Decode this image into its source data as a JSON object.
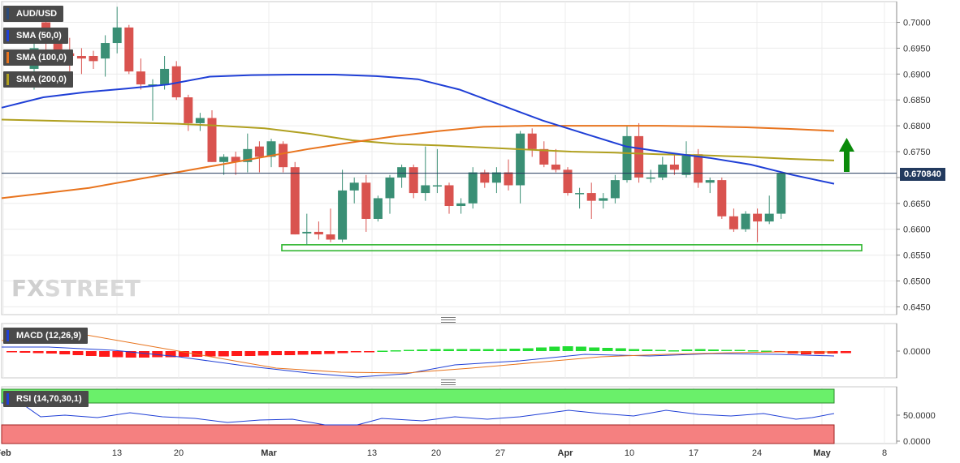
{
  "chart_data": [
    {
      "type": "candlestick",
      "legend": [
        "AUD/USD",
        "SMA (50,0)",
        "SMA (100,0)",
        "SMA (200,0)"
      ],
      "colors": {
        "up": "#3a8f75",
        "down": "#d9534f",
        "sma50": "#1f3fd6",
        "sma100": "#e8741e",
        "sma200": "#b0a020",
        "support_box": "#2fb52f",
        "arrow": "#0a8a0a"
      },
      "y_ticks": [
        "0.7000",
        "0.6950",
        "0.6900",
        "0.6850",
        "0.6800",
        "0.6750",
        "0.6700",
        "0.6650",
        "0.6600",
        "0.6550",
        "0.6500",
        "0.6450"
      ],
      "ylim": [
        0.6435,
        0.704
      ],
      "last_price": "0.670840",
      "x_ticks": [
        "Feb",
        "13",
        "20",
        "Mar",
        "13",
        "20",
        "27",
        "Apr",
        "10",
        "17",
        "24",
        "May",
        "8"
      ],
      "candles_note": "o,h,l,c per trading day",
      "candles": [
        [
          0.691,
          0.697,
          0.687,
          0.695
        ],
        [
          0.7,
          0.702,
          0.694,
          0.696
        ],
        [
          0.696,
          0.6985,
          0.692,
          0.694
        ],
        [
          0.694,
          0.697,
          0.69,
          0.6935
        ],
        [
          0.6935,
          0.695,
          0.69,
          0.693
        ],
        [
          0.6935,
          0.6945,
          0.691,
          0.6925
        ],
        [
          0.693,
          0.6975,
          0.6895,
          0.696
        ],
        [
          0.696,
          0.703,
          0.694,
          0.699
        ],
        [
          0.699,
          0.6995,
          0.69,
          0.6905
        ],
        [
          0.6905,
          0.693,
          0.687,
          0.688
        ],
        [
          0.688,
          0.689,
          0.681,
          0.688
        ],
        [
          0.688,
          0.6935,
          0.687,
          0.691
        ],
        [
          0.6915,
          0.6925,
          0.685,
          0.6855
        ],
        [
          0.6855,
          0.686,
          0.679,
          0.6805
        ],
        [
          0.6805,
          0.6825,
          0.679,
          0.6815
        ],
        [
          0.6815,
          0.683,
          0.673,
          0.673
        ],
        [
          0.673,
          0.6745,
          0.6705,
          0.674
        ],
        [
          0.674,
          0.675,
          0.6705,
          0.673
        ],
        [
          0.673,
          0.6785,
          0.671,
          0.6755
        ],
        [
          0.676,
          0.677,
          0.671,
          0.674
        ],
        [
          0.674,
          0.6775,
          0.672,
          0.677
        ],
        [
          0.6765,
          0.677,
          0.671,
          0.672
        ],
        [
          0.672,
          0.673,
          0.659,
          0.659
        ],
        [
          0.6592,
          0.663,
          0.657,
          0.6595
        ],
        [
          0.6595,
          0.6615,
          0.658,
          0.659
        ],
        [
          0.659,
          0.664,
          0.6575,
          0.658
        ],
        [
          0.658,
          0.6715,
          0.6575,
          0.6675
        ],
        [
          0.6675,
          0.67,
          0.665,
          0.669
        ],
        [
          0.669,
          0.6705,
          0.6595,
          0.662
        ],
        [
          0.662,
          0.6665,
          0.6615,
          0.666
        ],
        [
          0.666,
          0.6705,
          0.663,
          0.67
        ],
        [
          0.67,
          0.6725,
          0.668,
          0.672
        ],
        [
          0.672,
          0.6725,
          0.666,
          0.667
        ],
        [
          0.667,
          0.676,
          0.6655,
          0.6685
        ],
        [
          0.6685,
          0.6755,
          0.667,
          0.6685
        ],
        [
          0.6685,
          0.669,
          0.663,
          0.6645
        ],
        [
          0.6645,
          0.666,
          0.663,
          0.665
        ],
        [
          0.665,
          0.672,
          0.664,
          0.671
        ],
        [
          0.671,
          0.6715,
          0.668,
          0.669
        ],
        [
          0.669,
          0.672,
          0.667,
          0.671
        ],
        [
          0.671,
          0.6735,
          0.6675,
          0.6685
        ],
        [
          0.6685,
          0.679,
          0.665,
          0.6785
        ],
        [
          0.6785,
          0.6795,
          0.674,
          0.6755
        ],
        [
          0.6755,
          0.677,
          0.672,
          0.6725
        ],
        [
          0.6725,
          0.6755,
          0.671,
          0.6715
        ],
        [
          0.6715,
          0.672,
          0.6665,
          0.667
        ],
        [
          0.667,
          0.668,
          0.664,
          0.667
        ],
        [
          0.667,
          0.669,
          0.662,
          0.6655
        ],
        [
          0.6655,
          0.667,
          0.664,
          0.666
        ],
        [
          0.666,
          0.6705,
          0.665,
          0.6695
        ],
        [
          0.6695,
          0.68,
          0.669,
          0.678
        ],
        [
          0.678,
          0.6805,
          0.669,
          0.67
        ],
        [
          0.67,
          0.6715,
          0.669,
          0.67
        ],
        [
          0.67,
          0.674,
          0.6695,
          0.6725
        ],
        [
          0.6725,
          0.6745,
          0.6705,
          0.6715
        ],
        [
          0.6705,
          0.677,
          0.67,
          0.6745
        ],
        [
          0.6745,
          0.6755,
          0.668,
          0.669
        ],
        [
          0.669,
          0.67,
          0.667,
          0.6695
        ],
        [
          0.6695,
          0.67,
          0.662,
          0.6625
        ],
        [
          0.6625,
          0.664,
          0.6595,
          0.66
        ],
        [
          0.66,
          0.6635,
          0.6595,
          0.663
        ],
        [
          0.663,
          0.664,
          0.6575,
          0.6615
        ],
        [
          0.6615,
          0.6665,
          0.661,
          0.663
        ],
        [
          0.663,
          0.671,
          0.662,
          0.6708
        ]
      ],
      "sma50": [
        0.6835,
        0.6855,
        0.6865,
        0.6872,
        0.688,
        0.6895,
        0.6898,
        0.6899,
        0.6899,
        0.6896,
        0.689,
        0.687,
        0.684,
        0.681,
        0.6785,
        0.676,
        0.6748,
        0.6738,
        0.6725,
        0.6705,
        0.6688
      ],
      "sma100": [
        0.666,
        0.667,
        0.668,
        0.6695,
        0.671,
        0.6725,
        0.674,
        0.6755,
        0.6768,
        0.678,
        0.679,
        0.6798,
        0.68,
        0.68,
        0.68,
        0.68,
        0.6799,
        0.6797,
        0.6794,
        0.679
      ],
      "sma200": [
        0.6812,
        0.681,
        0.6808,
        0.6806,
        0.6804,
        0.68,
        0.6795,
        0.6785,
        0.6772,
        0.6765,
        0.6762,
        0.6758,
        0.6754,
        0.675,
        0.6748,
        0.6745,
        0.6743,
        0.674,
        0.6736,
        0.6733
      ]
    },
    {
      "type": "bar",
      "legend": [
        "MACD (12,26,9)"
      ],
      "y_ticks": [
        "0.0000"
      ]
    },
    {
      "type": "line",
      "legend": [
        "RSI (14,70,30,1)"
      ],
      "y_ticks": [
        "50.0000",
        "0.0000"
      ]
    }
  ],
  "watermark": {
    "fx": "FX",
    "street": "STREET"
  }
}
